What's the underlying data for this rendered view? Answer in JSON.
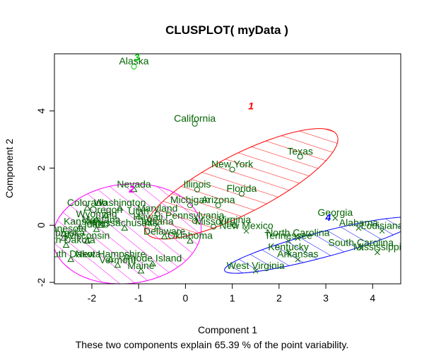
{
  "chart_data": {
    "type": "scatter",
    "title": "CLUSPLOT( myData )",
    "xlabel": "Component 1",
    "ylabel": "Component 2",
    "subtitle": "These two components explain 65.39 % of the point variability.",
    "xlim": [
      -2.8,
      4.6
    ],
    "ylim": [
      -2.05,
      6.0
    ],
    "xticks": [
      "-2",
      "-1",
      "0",
      "1",
      "2",
      "3",
      "4"
    ],
    "yticks": [
      "-2",
      "0",
      "2",
      "4"
    ],
    "colors": {
      "label_text": "#006400",
      "cluster1": "#ff0000",
      "cluster2": "#ff00ff",
      "cluster3": "#00cc00",
      "cluster4": "#0000ff",
      "axes": "#000000"
    },
    "clusters": [
      {
        "id": "1",
        "color": "#ff0000",
        "center": [
          1.2,
          1.45
        ],
        "ellipse_points": [
          [
            0.1,
            0.2
          ],
          [
            2.1,
            2.2
          ],
          [
            3.05,
            3.0
          ],
          [
            2.4,
            2.4
          ],
          [
            -0.85,
            0.4
          ],
          [
            0.6,
            -0.1
          ]
        ]
      },
      {
        "id": "2",
        "color": "#ff00ff",
        "center": [
          -1.25,
          -0.3
        ],
        "ellipse_points": [
          [
            -1.2,
            1.3
          ],
          [
            -2.4,
            -0.5
          ],
          [
            -0.2,
            -1.7
          ],
          [
            -1.9,
            -1.5
          ],
          [
            0.2,
            0.2
          ]
        ]
      },
      {
        "id": "3",
        "color": "#00cc00",
        "center": [
          -1.1,
          5.65
        ],
        "ellipse_points": []
      },
      {
        "id": "4",
        "color": "#0000ff",
        "center": [
          2.88,
          -0.7
        ],
        "ellipse_points": [
          [
            1.0,
            -1.6
          ],
          [
            4.2,
            0.1
          ],
          [
            4.3,
            -0.5
          ]
        ]
      }
    ],
    "points": [
      {
        "name": "Alaska",
        "x": -1.1,
        "y": 5.55,
        "cluster": 3,
        "marker": "circle"
      },
      {
        "name": "California",
        "x": 0.2,
        "y": 3.55,
        "cluster": 1,
        "marker": "circle"
      },
      {
        "name": "Texas",
        "x": 2.45,
        "y": 2.4,
        "cluster": 1,
        "marker": "circle"
      },
      {
        "name": "New York",
        "x": 1.0,
        "y": 1.95,
        "cluster": 1,
        "marker": "circle"
      },
      {
        "name": "Illinois",
        "x": 0.25,
        "y": 1.25,
        "cluster": 1,
        "marker": "circle"
      },
      {
        "name": "Florida",
        "x": 1.2,
        "y": 1.1,
        "cluster": 1,
        "marker": "circle"
      },
      {
        "name": "Michigan",
        "x": 0.1,
        "y": 0.7,
        "cluster": 1,
        "marker": "circle"
      },
      {
        "name": "Arizona",
        "x": 0.7,
        "y": 0.7,
        "cluster": 1,
        "marker": "circle"
      },
      {
        "name": "Maryland",
        "x": -0.6,
        "y": 0.4,
        "cluster": 1,
        "marker": "circle"
      },
      {
        "name": "Pennsylvania",
        "x": 0.2,
        "y": 0.15,
        "cluster": 1,
        "marker": "circle"
      },
      {
        "name": "Virginia",
        "x": 1.05,
        "y": 0.0,
        "cluster": 1,
        "marker": "circle"
      },
      {
        "name": "Missouri",
        "x": 0.6,
        "y": -0.05,
        "cluster": 1,
        "marker": "circle"
      },
      {
        "name": "Nevada",
        "x": -1.1,
        "y": 1.25,
        "cluster": 2,
        "marker": "triangle"
      },
      {
        "name": "Colorado",
        "x": -2.1,
        "y": 0.6,
        "cluster": 2,
        "marker": "triangle"
      },
      {
        "name": "Washington",
        "x": -1.4,
        "y": 0.6,
        "cluster": 2,
        "marker": "triangle"
      },
      {
        "name": "Oregon",
        "x": -1.7,
        "y": 0.35,
        "cluster": 2,
        "marker": "triangle"
      },
      {
        "name": "Hawaii",
        "x": -0.8,
        "y": 0.1,
        "cluster": 2,
        "marker": "triangle"
      },
      {
        "name": "Utah",
        "x": -1.0,
        "y": 0.3,
        "cluster": 2,
        "marker": "triangle"
      },
      {
        "name": "Wyoming",
        "x": -1.9,
        "y": 0.2,
        "cluster": 2,
        "marker": "triangle"
      },
      {
        "name": "Kansas",
        "x": -2.25,
        "y": -0.05,
        "cluster": 2,
        "marker": "triangle"
      },
      {
        "name": "Idaho",
        "x": -1.9,
        "y": -0.15,
        "cluster": 2,
        "marker": "triangle"
      },
      {
        "name": "Indiana",
        "x": -0.6,
        "y": -0.05,
        "cluster": 2,
        "marker": "triangle"
      },
      {
        "name": "Montana",
        "x": -1.8,
        "y": 0.0,
        "cluster": 2,
        "marker": "triangle"
      },
      {
        "name": "Massachusetts",
        "x": -1.3,
        "y": -0.1,
        "cluster": 2,
        "marker": "triangle"
      },
      {
        "name": "Minnesota",
        "x": -2.6,
        "y": -0.3,
        "cluster": 2,
        "marker": "triangle"
      },
      {
        "name": "Nebraska",
        "x": -2.6,
        "y": -0.45,
        "cluster": 2,
        "marker": "triangle"
      },
      {
        "name": "Delaware",
        "x": -0.45,
        "y": -0.4,
        "cluster": 2,
        "marker": "triangle"
      },
      {
        "name": "Oklahoma",
        "x": 0.1,
        "y": -0.55,
        "cluster": 2,
        "marker": "triangle"
      },
      {
        "name": "Wisconsin",
        "x": -2.1,
        "y": -0.55,
        "cluster": 2,
        "marker": "triangle"
      },
      {
        "name": "North Dakota",
        "x": -2.55,
        "y": -0.7,
        "cluster": 2,
        "marker": "triangle"
      },
      {
        "name": "South Dakota",
        "x": -2.45,
        "y": -1.2,
        "cluster": 2,
        "marker": "triangle"
      },
      {
        "name": "New Hampshire",
        "x": -1.6,
        "y": -1.2,
        "cluster": 2,
        "marker": "triangle"
      },
      {
        "name": "Rhode Island",
        "x": -0.7,
        "y": -1.35,
        "cluster": 2,
        "marker": "triangle"
      },
      {
        "name": "Vermont",
        "x": -1.45,
        "y": -1.4,
        "cluster": 2,
        "marker": "triangle"
      },
      {
        "name": "Maine",
        "x": -0.95,
        "y": -1.6,
        "cluster": 2,
        "marker": "triangle"
      },
      {
        "name": "Georgia",
        "x": 3.2,
        "y": 0.25,
        "cluster": 4,
        "marker": "x"
      },
      {
        "name": "Alabama",
        "x": 3.7,
        "y": -0.1,
        "cluster": 4,
        "marker": "x"
      },
      {
        "name": "Louisiana",
        "x": 4.2,
        "y": -0.2,
        "cluster": 4,
        "marker": "x"
      },
      {
        "name": "New Mexico",
        "x": 1.3,
        "y": -0.2,
        "cluster": 4,
        "marker": "x"
      },
      {
        "name": "North Carolina",
        "x": 2.4,
        "y": -0.45,
        "cluster": 4,
        "marker": "x"
      },
      {
        "name": "Tennessee",
        "x": 2.2,
        "y": -0.55,
        "cluster": 4,
        "marker": "x"
      },
      {
        "name": "South Carolina",
        "x": 3.75,
        "y": -0.8,
        "cluster": 4,
        "marker": "x"
      },
      {
        "name": "Mississippi",
        "x": 4.1,
        "y": -0.95,
        "cluster": 4,
        "marker": "x"
      },
      {
        "name": "Kentucky",
        "x": 2.2,
        "y": -0.95,
        "cluster": 4,
        "marker": "x"
      },
      {
        "name": "Arkansas",
        "x": 2.4,
        "y": -1.2,
        "cluster": 4,
        "marker": "x"
      },
      {
        "name": "West Virginia",
        "x": 1.5,
        "y": -1.6,
        "cluster": 4,
        "marker": "x"
      }
    ]
  }
}
